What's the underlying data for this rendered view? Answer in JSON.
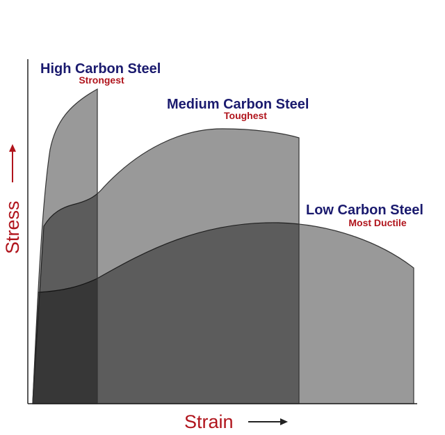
{
  "curves": [
    {
      "label": "High Carbon Steel",
      "note": "Strongest"
    },
    {
      "label": "Medium Carbon Steel",
      "note": "Toughest"
    },
    {
      "label": "Low Carbon Steel",
      "note": "Most Ductile"
    }
  ],
  "axes": {
    "y_label": "Stress",
    "x_label": "Strain"
  }
}
